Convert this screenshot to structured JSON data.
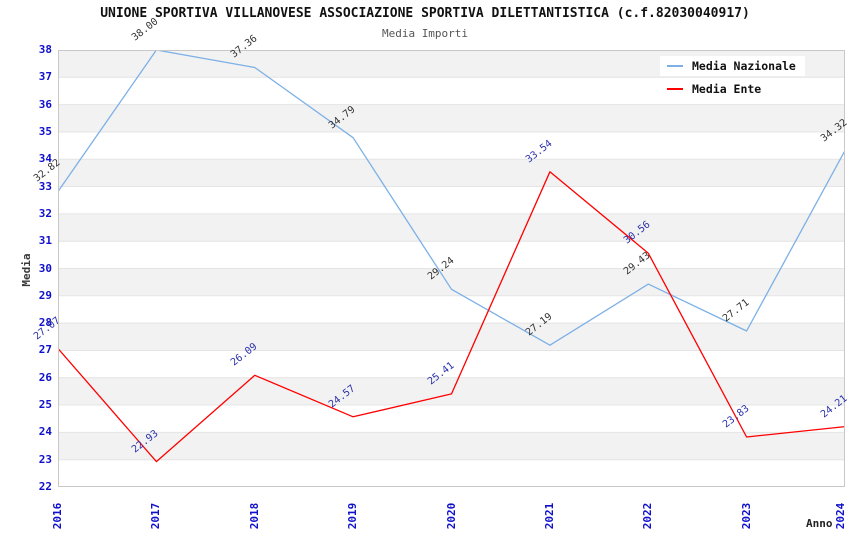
{
  "title": "UNIONE SPORTIVA VILLANOVESE ASSOCIAZIONE SPORTIVA DILETTANTISTICA (c.f.82030040917)",
  "subtitle": "Media Importi",
  "chart_data": {
    "type": "line",
    "x": [
      "2016",
      "2017",
      "2018",
      "2019",
      "2020",
      "2021",
      "2022",
      "2023",
      "2024"
    ],
    "series": [
      {
        "name": "Media Nazionale",
        "color": "#7CB0E6",
        "label_color": "#333333",
        "values": [
          32.82,
          38.0,
          37.36,
          34.79,
          29.24,
          27.19,
          29.43,
          27.71,
          34.32
        ]
      },
      {
        "name": "Media Ente",
        "color": "#FF0000",
        "label_color": "#2B31AC",
        "values": [
          27.07,
          22.93,
          26.09,
          24.57,
          25.41,
          33.54,
          30.56,
          23.83,
          24.21
        ]
      }
    ],
    "xlabel": "Anno",
    "ylabel": "Media",
    "ylim": [
      22,
      38
    ],
    "ytick_step": 1,
    "grid": "alternating-horizontal-bands",
    "legend_position": "top-right",
    "colors": {
      "band": "#F2F2F2",
      "grid_line": "#E4E4E4",
      "plot_border": "#C8C8C8",
      "tick_label": "#0F0FCC"
    }
  }
}
